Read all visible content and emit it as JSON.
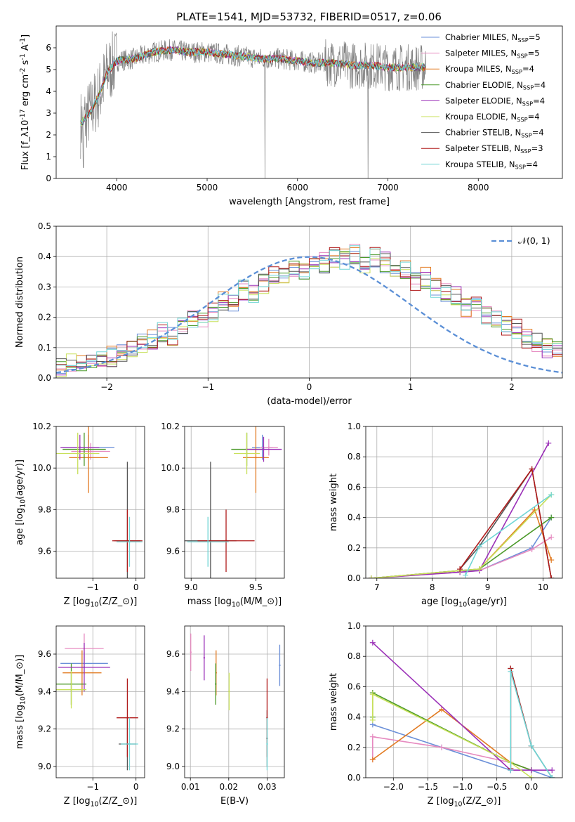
{
  "figure_title": "PLATE=1541, MJD=53732, FIBERID=0517, z=0.06",
  "legend_names": [
    "Chabrier MILES, N_{SSP}=5",
    "Salpeter MILES, N_{SSP}=5",
    "Kroupa MILES, N_{SSP}=4",
    "Chabrier ELODIE, N_{SSP}=4",
    "Salpeter ELODIE, N_{SSP}=4",
    "Kroupa ELODIE, N_{SSP}=4",
    "Chabrier STELIB, N_{SSP}=4",
    "Salpeter STELIB, N_{SSP}=3",
    "Kroupa STELIB, N_{SSP}=4"
  ],
  "series_colors": [
    "#6a8fd8",
    "#e68ac0",
    "#e27b22",
    "#4c9a2a",
    "#9b30b8",
    "#c8e05a",
    "#555555",
    "#b01a1a",
    "#70d6d6"
  ],
  "chart_data": [
    {
      "id": "spectrum",
      "type": "line",
      "title": "PLATE=1541, MJD=53732, FIBERID=0517, z=0.06",
      "xlabel": "wavelength [Angstrom, rest frame]",
      "ylabel": "Flux [f_λ10^{-17} erg cm^{-2} s^{-1} A^{-1}]",
      "xlim": [
        3330,
        8930
      ],
      "ylim": [
        0,
        7
      ],
      "xticks": [
        4000,
        5000,
        6000,
        7000,
        8000
      ],
      "yticks": [
        0,
        1,
        2,
        3,
        4,
        5,
        6
      ],
      "grid": false,
      "legend": "right",
      "series": [
        {
          "name": "Chabrier MILES, N_{SSP}=5"
        },
        {
          "name": "Salpeter MILES, N_{SSP}=5"
        },
        {
          "name": "Kroupa MILES, N_{SSP}=4"
        },
        {
          "name": "Chabrier ELODIE, N_{SSP}=4"
        },
        {
          "name": "Salpeter ELODIE, N_{SSP}=4"
        },
        {
          "name": "Kroupa ELODIE, N_{SSP}=4"
        },
        {
          "name": "Chabrier STELIB, N_{SSP}=4"
        },
        {
          "name": "Salpeter STELIB, N_{SSP}=3"
        },
        {
          "name": "Kroupa STELIB, N_{SSP}=4"
        }
      ],
      "data_color": "#808080",
      "continuum_x": [
        3600,
        3700,
        3800,
        3900,
        4000,
        4200,
        4400,
        4600,
        4800,
        5000,
        5200,
        5400,
        5600,
        5800,
        6000,
        6200,
        6400,
        6600,
        6800,
        7000,
        7200,
        7400
      ],
      "continuum_y": [
        2.5,
        3.0,
        3.8,
        4.9,
        5.4,
        5.5,
        5.8,
        5.9,
        5.8,
        5.8,
        5.7,
        5.6,
        5.5,
        5.5,
        5.4,
        5.3,
        5.3,
        5.2,
        5.2,
        5.1,
        5.1,
        5.1
      ]
    },
    {
      "id": "residuals",
      "type": "area",
      "xlabel": "(data-model)/error",
      "ylabel": "Normed distribution",
      "xlim": [
        -2.5,
        2.5
      ],
      "ylim": [
        0,
        0.5
      ],
      "xticks": [
        -2,
        -1,
        0,
        1,
        2
      ],
      "yticks": [
        0.0,
        0.1,
        0.2,
        0.3,
        0.4,
        0.5
      ],
      "grid": true,
      "legend": "top-right",
      "normal_label": "𝒩(0, 1)",
      "bins_start": -2.5,
      "bin_width": 0.1,
      "hist_base": [
        0.03,
        0.05,
        0.04,
        0.05,
        0.06,
        0.07,
        0.08,
        0.1,
        0.11,
        0.13,
        0.15,
        0.14,
        0.17,
        0.19,
        0.18,
        0.22,
        0.25,
        0.24,
        0.29,
        0.27,
        0.31,
        0.34,
        0.33,
        0.37,
        0.36,
        0.39,
        0.38,
        0.4,
        0.39,
        0.41,
        0.37,
        0.4,
        0.38,
        0.35,
        0.36,
        0.32,
        0.33,
        0.3,
        0.28,
        0.27,
        0.23,
        0.25,
        0.2,
        0.19,
        0.17,
        0.16,
        0.13,
        0.12,
        0.1,
        0.09
      ]
    },
    {
      "id": "age_metallicity",
      "type": "scatter",
      "xlabel": "Z [log_{10}(Z/Z_⊙)]",
      "ylabel": "age  [log_{10}(age/yr)]",
      "xlim": [
        -1.85,
        0.2
      ],
      "ylim": [
        9.47,
        10.2
      ],
      "xticks": [
        -1,
        0
      ],
      "yticks": [
        9.6,
        9.8,
        10.0,
        10.2
      ],
      "grid": true,
      "points": [
        {
          "x": -1.1,
          "y": 10.1,
          "xerr": 0.6,
          "yerr": 0.06,
          "s": 0
        },
        {
          "x": -1.05,
          "y": 10.08,
          "xerr": 0.45,
          "yerr": 0.04,
          "s": 1
        },
        {
          "x": -1.1,
          "y": 10.05,
          "xerr": 0.45,
          "yerr": 0.17,
          "s": 2
        },
        {
          "x": -1.2,
          "y": 10.09,
          "xerr": 0.5,
          "yerr": 0.08,
          "s": 3
        },
        {
          "x": -1.3,
          "y": 10.1,
          "xerr": 0.45,
          "yerr": 0.06,
          "s": 4
        },
        {
          "x": -1.35,
          "y": 10.07,
          "xerr": 0.5,
          "yerr": 0.1,
          "s": 5
        },
        {
          "x": -0.2,
          "y": 9.65,
          "xerr": 0.3,
          "yerr": 0.38,
          "s": 6
        },
        {
          "x": -0.2,
          "y": 9.65,
          "xerr": 0.35,
          "yerr": 0.15,
          "s": 7
        },
        {
          "x": -0.15,
          "y": 9.645,
          "xerr": 0.3,
          "yerr": 0.12,
          "s": 8
        }
      ]
    },
    {
      "id": "age_mass",
      "type": "scatter",
      "xlabel": "mass [log_{10}(M/M_⊙)]",
      "ylabel": "",
      "xlim": [
        8.95,
        9.72
      ],
      "ylim": [
        9.47,
        10.2
      ],
      "xticks": [
        9.0,
        9.5
      ],
      "yticks": [
        9.6,
        9.8,
        10.0,
        10.2
      ],
      "grid": true,
      "points": [
        {
          "x": 9.55,
          "y": 10.1,
          "xerr": 0.08,
          "yerr": 0.06,
          "s": 0
        },
        {
          "x": 9.6,
          "y": 10.1,
          "xerr": 0.07,
          "yerr": 0.04,
          "s": 1
        },
        {
          "x": 9.5,
          "y": 10.05,
          "xerr": 0.1,
          "yerr": 0.17,
          "s": 2
        },
        {
          "x": 9.43,
          "y": 10.09,
          "xerr": 0.12,
          "yerr": 0.08,
          "s": 3
        },
        {
          "x": 9.56,
          "y": 10.09,
          "xerr": 0.14,
          "yerr": 0.06,
          "s": 4
        },
        {
          "x": 9.43,
          "y": 10.07,
          "xerr": 0.1,
          "yerr": 0.1,
          "s": 5
        },
        {
          "x": 9.15,
          "y": 9.65,
          "xerr": 0.2,
          "yerr": 0.38,
          "s": 6
        },
        {
          "x": 9.27,
          "y": 9.65,
          "xerr": 0.22,
          "yerr": 0.15,
          "s": 7
        },
        {
          "x": 9.13,
          "y": 9.645,
          "xerr": 0.16,
          "yerr": 0.12,
          "s": 8
        }
      ]
    },
    {
      "id": "massweight_age",
      "type": "line",
      "xlabel": "age  [log_{10}(age/yr)]",
      "ylabel": "mass weight",
      "xlim": [
        6.8,
        10.35
      ],
      "ylim": [
        0,
        1.0
      ],
      "xticks": [
        7,
        8,
        9,
        10
      ],
      "yticks": [
        0.0,
        0.2,
        0.4,
        0.6,
        0.8,
        1.0
      ],
      "grid": true,
      "series": [
        {
          "x": [
            6.9,
            8.5,
            8.85,
            9.8,
            10.15
          ],
          "y": [
            0.0,
            0.05,
            0.05,
            0.2,
            0.4
          ]
        },
        {
          "x": [
            6.9,
            8.5,
            8.85,
            9.8,
            10.15
          ],
          "y": [
            0.0,
            0.04,
            0.05,
            0.19,
            0.27
          ]
        },
        {
          "x": [
            6.9,
            8.5,
            8.85,
            9.85,
            10.15
          ],
          "y": [
            0.0,
            0.05,
            0.06,
            0.45,
            0.12
          ]
        },
        {
          "x": [
            6.9,
            8.5,
            8.85,
            10.15
          ],
          "y": [
            0.0,
            0.05,
            0.06,
            0.4
          ]
        },
        {
          "x": [
            6.9,
            8.5,
            8.85,
            10.1
          ],
          "y": [
            0.0,
            0.04,
            0.05,
            0.89
          ]
        },
        {
          "x": [
            6.9,
            8.5,
            8.85,
            10.15
          ],
          "y": [
            0.0,
            0.05,
            0.06,
            0.55
          ]
        },
        {
          "x": [
            8.5,
            8.85,
            9.8,
            10.15
          ],
          "y": [
            0.06,
            0.21,
            0.72,
            0.0
          ]
        },
        {
          "x": [
            8.5,
            9.8,
            10.15
          ],
          "y": [
            0.06,
            0.72,
            0.0
          ]
        },
        {
          "x": [
            8.6,
            8.85,
            10.15
          ],
          "y": [
            0.02,
            0.21,
            0.55
          ]
        }
      ]
    },
    {
      "id": "mass_metallicity",
      "type": "scatter",
      "xlabel": "Z [log_{10}(Z/Z_⊙)]",
      "ylabel": "mass [log_{10}(M/M_⊙)]",
      "xlim": [
        -1.85,
        0.2
      ],
      "ylim": [
        8.94,
        9.75
      ],
      "xticks": [
        -1,
        0
      ],
      "yticks": [
        9.0,
        9.2,
        9.4,
        9.6
      ],
      "grid": true,
      "points": [
        {
          "x": -1.2,
          "y": 9.55,
          "xerr": 0.55,
          "yerr": 0.06,
          "s": 0
        },
        {
          "x": -1.2,
          "y": 9.63,
          "xerr": 0.45,
          "yerr": 0.08,
          "s": 1
        },
        {
          "x": -1.25,
          "y": 9.5,
          "xerr": 0.45,
          "yerr": 0.12,
          "s": 2
        },
        {
          "x": -1.5,
          "y": 9.44,
          "xerr": 0.35,
          "yerr": 0.11,
          "s": 3
        },
        {
          "x": -1.2,
          "y": 9.53,
          "xerr": 0.6,
          "yerr": 0.13,
          "s": 4
        },
        {
          "x": -1.5,
          "y": 9.41,
          "xerr": 0.35,
          "yerr": 0.1,
          "s": 5
        },
        {
          "x": -0.2,
          "y": 9.12,
          "xerr": 0.2,
          "yerr": 0.14,
          "s": 6
        },
        {
          "x": -0.2,
          "y": 9.26,
          "xerr": 0.25,
          "yerr": 0.21,
          "s": 7
        },
        {
          "x": -0.15,
          "y": 9.12,
          "xerr": 0.2,
          "yerr": 0.14,
          "s": 8
        }
      ]
    },
    {
      "id": "mass_ebv",
      "type": "scatter",
      "xlabel": "E(B-V)",
      "ylabel": "",
      "xlim": [
        0.0085,
        0.0345
      ],
      "ylim": [
        8.94,
        9.75
      ],
      "xticks": [
        0.01,
        0.02,
        0.03
      ],
      "yticks": [
        9.0,
        9.2,
        9.4,
        9.6
      ],
      "grid": true,
      "points": [
        {
          "x": 0.0333,
          "y": 9.54,
          "xerr": 0,
          "yerr": 0.11,
          "s": 0
        },
        {
          "x": 0.0101,
          "y": 9.61,
          "xerr": 0,
          "yerr": 0.1,
          "s": 1
        },
        {
          "x": 0.0167,
          "y": 9.5,
          "xerr": 0,
          "yerr": 0.12,
          "s": 2
        },
        {
          "x": 0.0166,
          "y": 9.44,
          "xerr": 0,
          "yerr": 0.11,
          "s": 3
        },
        {
          "x": 0.0136,
          "y": 9.58,
          "xerr": 0,
          "yerr": 0.12,
          "s": 4
        },
        {
          "x": 0.0201,
          "y": 9.4,
          "xerr": 0,
          "yerr": 0.1,
          "s": 5
        },
        {
          "x": 0.03,
          "y": 9.15,
          "xerr": 0,
          "yerr": 0.15,
          "s": 6
        },
        {
          "x": 0.03,
          "y": 9.26,
          "xerr": 0,
          "yerr": 0.21,
          "s": 7
        },
        {
          "x": 0.03,
          "y": 9.12,
          "xerr": 0,
          "yerr": 0.14,
          "s": 8
        }
      ]
    },
    {
      "id": "massweight_metallicity",
      "type": "line",
      "xlabel": "Z [log_{10}(Z/Z_⊙)]",
      "ylabel": "mass weight",
      "xlim": [
        -2.4,
        0.45
      ],
      "ylim": [
        0,
        1.0
      ],
      "xticks": [
        -2.0,
        -1.5,
        -1.0,
        -0.5,
        0.0
      ],
      "yticks": [
        0.0,
        0.2,
        0.4,
        0.6,
        0.8,
        1.0
      ],
      "grid": true,
      "series": [
        {
          "x": [
            -2.3,
            -1.3,
            -0.3,
            0.0,
            0.3
          ],
          "y": [
            0.35,
            0.2,
            0.05,
            0.05,
            0.0
          ]
        },
        {
          "x": [
            -2.3,
            -2.3,
            -1.3,
            -0.3,
            0.0
          ],
          "y": [
            0.12,
            0.27,
            0.2,
            0.1,
            0.05
          ]
        },
        {
          "x": [
            -2.3,
            -1.3,
            -0.3,
            0.0
          ],
          "y": [
            0.12,
            0.45,
            0.1,
            0.05
          ]
        },
        {
          "x": [
            -2.3,
            -2.3,
            -0.3,
            0.0
          ],
          "y": [
            0.4,
            0.56,
            0.1,
            0.05
          ]
        },
        {
          "x": [
            -2.3,
            -0.3,
            0.0,
            0.3
          ],
          "y": [
            0.89,
            0.05,
            0.05,
            0.05
          ]
        },
        {
          "x": [
            -2.3,
            -2.3,
            -0.3,
            0.0
          ],
          "y": [
            0.38,
            0.55,
            0.1,
            0.0
          ]
        },
        {
          "x": [
            -0.3,
            -0.3,
            0.0,
            0.3
          ],
          "y": [
            0.06,
            0.72,
            0.21,
            0.0
          ]
        },
        {
          "x": [
            -0.3,
            -0.3,
            0.0
          ],
          "y": [
            0.06,
            0.72,
            0.21
          ]
        },
        {
          "x": [
            -0.3,
            -0.3,
            0.0,
            0.3
          ],
          "y": [
            0.05,
            0.7,
            0.21,
            0.0
          ]
        }
      ]
    }
  ]
}
